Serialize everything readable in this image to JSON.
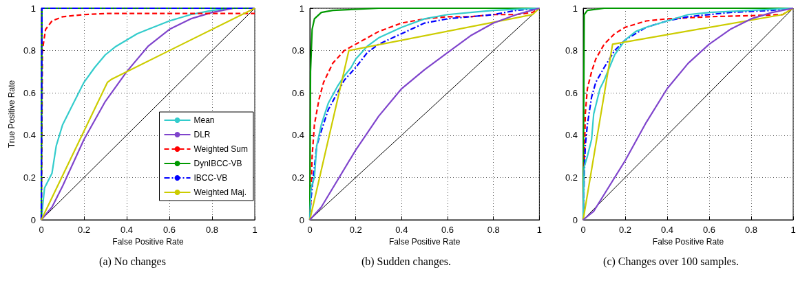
{
  "chart_data": [
    {
      "type": "line",
      "xlabel": "False Positive Rate",
      "ylabel": "True Positive Rate",
      "annotations": [
        "(a) No changes"
      ],
      "xlim": [
        0,
        1
      ],
      "ylim": [
        0,
        1
      ],
      "xticks": [
        0,
        0.2,
        0.4,
        0.6,
        0.8,
        1
      ],
      "yticks": [
        0,
        0.2,
        0.4,
        0.6,
        0.8,
        1
      ],
      "grid": true,
      "legend": "bottom right",
      "marker": "none",
      "series": [
        {
          "name": "Mean",
          "color": "#33cccc",
          "line_style": "solid",
          "x": [
            0,
            0.01,
            0.015,
            0.03,
            0.05,
            0.07,
            0.1,
            0.15,
            0.2,
            0.25,
            0.3,
            0.35,
            0.4,
            0.45,
            0.5,
            0.6,
            0.7,
            0.8,
            0.9,
            1
          ],
          "values": [
            0,
            0.1,
            0.15,
            0.18,
            0.22,
            0.35,
            0.45,
            0.55,
            0.65,
            0.72,
            0.78,
            0.82,
            0.85,
            0.88,
            0.9,
            0.94,
            0.97,
            0.99,
            1,
            1
          ]
        },
        {
          "name": "DLR",
          "color": "#7f44cc",
          "line_style": "solid",
          "x": [
            0,
            0.05,
            0.1,
            0.2,
            0.3,
            0.4,
            0.5,
            0.6,
            0.7,
            0.8,
            0.9,
            1
          ],
          "values": [
            0,
            0.06,
            0.16,
            0.38,
            0.56,
            0.7,
            0.82,
            0.9,
            0.95,
            0.98,
            1,
            1
          ]
        },
        {
          "name": "Weighted Sum",
          "color": "#ff0000",
          "line_style": "dashed",
          "x": [
            0,
            0.005,
            0.02,
            0.05,
            0.1,
            0.2,
            0.3,
            1
          ],
          "values": [
            0,
            0.8,
            0.9,
            0.94,
            0.96,
            0.97,
            0.975,
            0.975
          ]
        },
        {
          "name": "DynIBCC-VB",
          "color": "#009900",
          "line_style": "solid",
          "x": [
            0,
            0.003,
            1
          ],
          "values": [
            0,
            1,
            1
          ]
        },
        {
          "name": "IBCC-VB",
          "color": "#0000ff",
          "line_style": "dashdot",
          "x": [
            0,
            0.003,
            1
          ],
          "values": [
            0,
            1,
            1
          ]
        },
        {
          "name": "Weighted Maj.",
          "color": "#cccc00",
          "line_style": "solid",
          "x": [
            0,
            0.31,
            0.33,
            1
          ],
          "values": [
            0,
            0.65,
            0.665,
            1
          ]
        },
        {
          "color": "#000000",
          "line_style": "solid",
          "x": [
            0,
            1
          ],
          "values": [
            0,
            1
          ]
        }
      ]
    },
    {
      "type": "line",
      "xlabel": "False Positive Rate",
      "annotations": [
        "(b) Sudden changes."
      ],
      "xlim": [
        0,
        1
      ],
      "ylim": [
        0,
        1
      ],
      "xticks": [
        0,
        0.2,
        0.4,
        0.6,
        0.8,
        1
      ],
      "yticks": [
        0,
        0.2,
        0.4,
        0.6,
        0.8,
        1
      ],
      "grid": true,
      "legend": false,
      "marker": "none",
      "series": [
        {
          "color": "#009900",
          "line_style": "solid",
          "x": [
            0,
            0.003,
            0.01,
            0.02,
            0.05,
            0.1,
            0.3,
            1
          ],
          "values": [
            0,
            0.7,
            0.9,
            0.95,
            0.98,
            0.99,
            1,
            1
          ]
        },
        {
          "color": "#ff0000",
          "line_style": "dashed",
          "x": [
            0,
            0.005,
            0.01,
            0.02,
            0.04,
            0.06,
            0.1,
            0.15,
            0.2,
            0.3,
            0.4,
            0.5,
            0.6,
            0.7,
            0.8,
            0.9,
            0.97,
            1
          ],
          "values": [
            0,
            0.1,
            0.3,
            0.45,
            0.57,
            0.65,
            0.74,
            0.8,
            0.83,
            0.89,
            0.93,
            0.95,
            0.96,
            0.96,
            0.97,
            0.97,
            0.98,
            1
          ]
        },
        {
          "color": "#0000ff",
          "line_style": "dashdot",
          "x": [
            0,
            0.005,
            0.02,
            0.03,
            0.05,
            0.08,
            0.12,
            0.15,
            0.2,
            0.25,
            0.3,
            0.4,
            0.5,
            0.6,
            0.7,
            0.8,
            0.9,
            1
          ],
          "values": [
            0,
            0.1,
            0.25,
            0.35,
            0.42,
            0.52,
            0.6,
            0.66,
            0.72,
            0.79,
            0.83,
            0.88,
            0.93,
            0.95,
            0.96,
            0.97,
            0.99,
            1
          ]
        },
        {
          "color": "#33cccc",
          "line_style": "solid",
          "x": [
            0,
            0.005,
            0.02,
            0.03,
            0.05,
            0.08,
            0.12,
            0.15,
            0.18,
            0.2,
            0.25,
            0.3,
            0.4,
            0.5,
            0.6,
            0.7,
            0.8,
            1
          ],
          "values": [
            0,
            0.15,
            0.2,
            0.35,
            0.45,
            0.55,
            0.63,
            0.68,
            0.72,
            0.76,
            0.82,
            0.86,
            0.91,
            0.95,
            0.97,
            0.98,
            0.99,
            1
          ]
        },
        {
          "color": "#cccc00",
          "line_style": "solid",
          "x": [
            0,
            0.17,
            0.97,
            1
          ],
          "values": [
            0,
            0.8,
            0.97,
            1
          ]
        },
        {
          "color": "#7f44cc",
          "line_style": "solid",
          "x": [
            0,
            0.05,
            0.1,
            0.2,
            0.3,
            0.4,
            0.5,
            0.6,
            0.7,
            0.8,
            0.9,
            1
          ],
          "values": [
            0,
            0.06,
            0.15,
            0.33,
            0.49,
            0.62,
            0.71,
            0.79,
            0.87,
            0.93,
            0.97,
            1
          ]
        },
        {
          "color": "#000000",
          "line_style": "solid",
          "x": [
            0,
            1
          ],
          "values": [
            0,
            1
          ]
        }
      ]
    },
    {
      "type": "line",
      "xlabel": "False Positive Rate",
      "annotations": [
        "(c) Changes over 100 samples."
      ],
      "xlim": [
        0,
        1
      ],
      "ylim": [
        0,
        1
      ],
      "xticks": [
        0,
        0.2,
        0.4,
        0.6,
        0.8,
        1
      ],
      "yticks": [
        0,
        0.2,
        0.4,
        0.6,
        0.8,
        1
      ],
      "grid": true,
      "legend": false,
      "marker": "none",
      "series": [
        {
          "color": "#009900",
          "line_style": "solid",
          "x": [
            0,
            0.002,
            0.005,
            0.02,
            0.1,
            1
          ],
          "values": [
            0,
            0.4,
            0.97,
            0.99,
            1,
            1
          ]
        },
        {
          "color": "#ff0000",
          "line_style": "dashed",
          "x": [
            0,
            0.005,
            0.01,
            0.02,
            0.04,
            0.06,
            0.1,
            0.15,
            0.2,
            0.3,
            0.4,
            0.6,
            0.8,
            0.95,
            1
          ],
          "values": [
            0,
            0.25,
            0.5,
            0.62,
            0.7,
            0.76,
            0.83,
            0.88,
            0.91,
            0.94,
            0.95,
            0.96,
            0.965,
            0.97,
            1
          ]
        },
        {
          "color": "#0000ff",
          "line_style": "dashdot",
          "x": [
            0,
            0.005,
            0.01,
            0.02,
            0.04,
            0.06,
            0.1,
            0.15,
            0.2,
            0.3,
            0.4,
            0.5,
            0.7,
            0.9,
            1
          ],
          "values": [
            0,
            0.2,
            0.35,
            0.45,
            0.58,
            0.65,
            0.72,
            0.8,
            0.85,
            0.91,
            0.94,
            0.96,
            0.98,
            0.99,
            1
          ]
        },
        {
          "color": "#33cccc",
          "line_style": "solid",
          "x": [
            0,
            0.005,
            0.02,
            0.04,
            0.05,
            0.08,
            0.1,
            0.15,
            0.2,
            0.25,
            0.3,
            0.4,
            0.5,
            0.6,
            0.8,
            1
          ],
          "values": [
            0,
            0.25,
            0.3,
            0.38,
            0.5,
            0.62,
            0.66,
            0.78,
            0.85,
            0.89,
            0.91,
            0.94,
            0.97,
            0.98,
            0.99,
            1
          ]
        },
        {
          "color": "#cccc00",
          "line_style": "solid",
          "x": [
            0,
            0.14,
            0.95,
            1
          ],
          "values": [
            0,
            0.83,
            0.97,
            1
          ]
        },
        {
          "color": "#7f44cc",
          "line_style": "solid",
          "x": [
            0,
            0.05,
            0.1,
            0.2,
            0.3,
            0.4,
            0.5,
            0.6,
            0.7,
            0.8,
            0.9,
            1
          ],
          "values": [
            0,
            0.04,
            0.12,
            0.28,
            0.46,
            0.62,
            0.74,
            0.83,
            0.9,
            0.95,
            0.98,
            1
          ]
        },
        {
          "color": "#000000",
          "line_style": "solid",
          "x": [
            0,
            1
          ],
          "values": [
            0,
            1
          ]
        }
      ]
    }
  ]
}
